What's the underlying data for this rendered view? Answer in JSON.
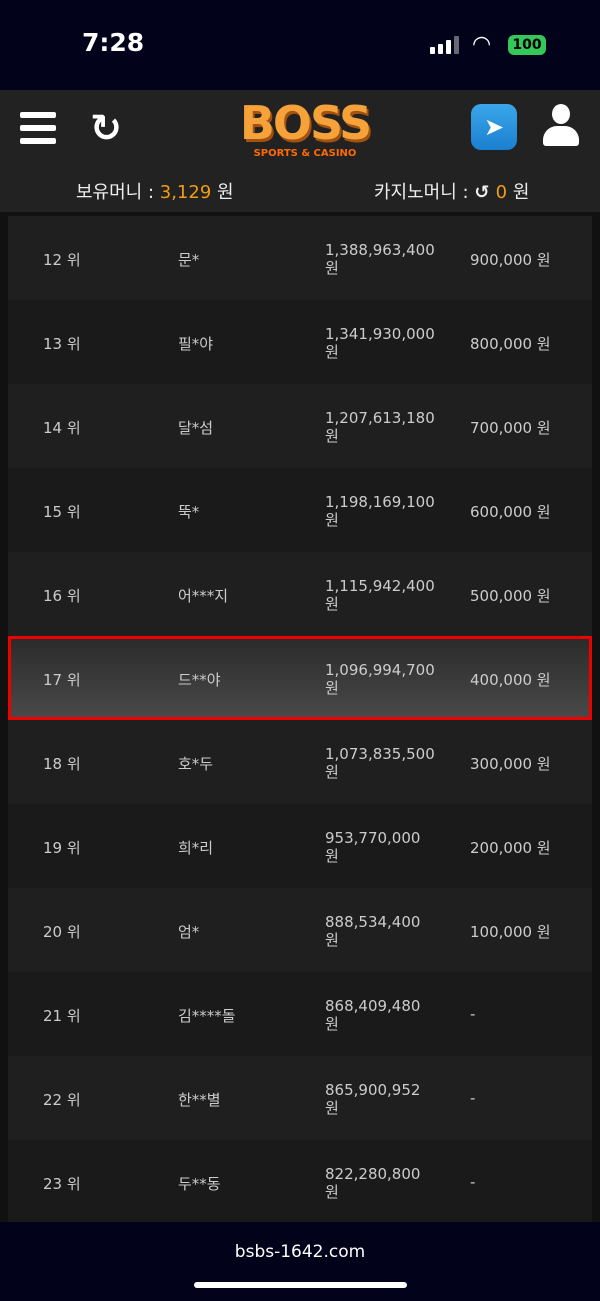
{
  "status": {
    "time": "7:28",
    "battery": "100"
  },
  "header": {
    "logo": "BOSS",
    "logo_sub": "SPORTS & CASINO"
  },
  "money": {
    "held_label": "보유머니 : ",
    "held_value": "3,129",
    "held_unit": " 원",
    "casino_label": "카지노머니 : ",
    "casino_value": "0",
    "casino_unit": " 원"
  },
  "rows": [
    {
      "rank": "12 위",
      "name": "문*",
      "amount": "1,388,963,400",
      "unit": "원",
      "prize": "900,000 원"
    },
    {
      "rank": "13 위",
      "name": "필*야",
      "amount": "1,341,930,000",
      "unit": "원",
      "prize": "800,000 원"
    },
    {
      "rank": "14 위",
      "name": "달*섬",
      "amount": "1,207,613,180",
      "unit": "원",
      "prize": "700,000 원"
    },
    {
      "rank": "15 위",
      "name": "뚝*",
      "amount": "1,198,169,100",
      "unit": "원",
      "prize": "600,000 원"
    },
    {
      "rank": "16 위",
      "name": "어***지",
      "amount": "1,115,942,400",
      "unit": "원",
      "prize": "500,000 원"
    },
    {
      "rank": "17 위",
      "name": "드**야",
      "amount": "1,096,994,700",
      "unit": "원",
      "prize": "400,000 원"
    },
    {
      "rank": "18 위",
      "name": "호*두",
      "amount": "1,073,835,500",
      "unit": "원",
      "prize": "300,000 원"
    },
    {
      "rank": "19 위",
      "name": "희*리",
      "amount": "953,770,000",
      "unit": "원",
      "prize": "200,000 원"
    },
    {
      "rank": "20 위",
      "name": "엄*",
      "amount": "888,534,400",
      "unit": "원",
      "prize": "100,000 원"
    },
    {
      "rank": "21 위",
      "name": "김****돌",
      "amount": "868,409,480",
      "unit": "원",
      "prize": "-"
    },
    {
      "rank": "22 위",
      "name": "한**별",
      "amount": "865,900,952",
      "unit": "원",
      "prize": "-"
    },
    {
      "rank": "23 위",
      "name": "두**동",
      "amount": "822,280,800",
      "unit": "원",
      "prize": "-"
    }
  ],
  "highlighted_rank": "17 위",
  "footer": {
    "url": "bsbs-1642.com"
  }
}
